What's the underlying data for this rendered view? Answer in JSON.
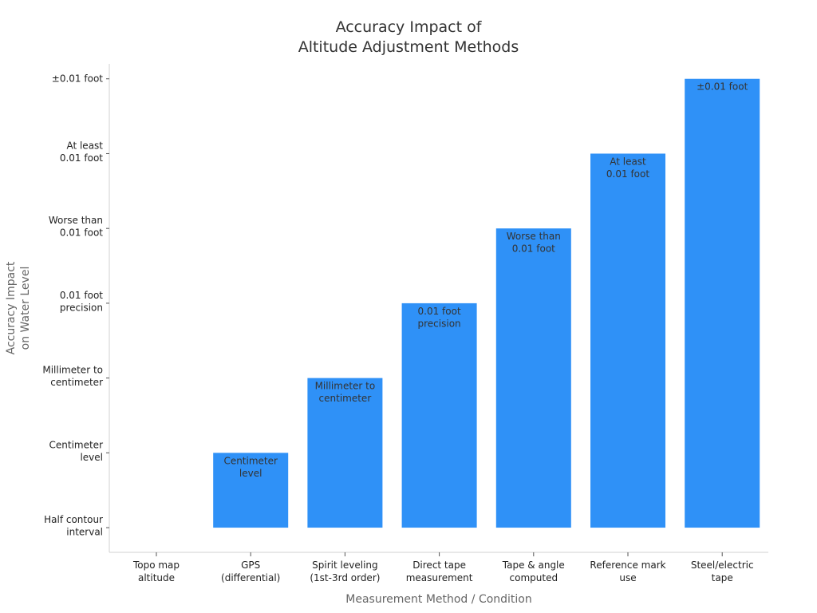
{
  "chart_data": {
    "type": "bar",
    "title": [
      "Accuracy Impact of",
      "Altitude Adjustment Methods"
    ],
    "xlabel": "Measurement Method / Condition",
    "ylabel": [
      "Accuracy Impact",
      "on Water Level"
    ],
    "categories": [
      [
        "Topo map",
        "altitude"
      ],
      [
        "GPS",
        "(differential)"
      ],
      [
        "Spirit leveling",
        "(1st-3rd order)"
      ],
      [
        "Direct tape",
        "measurement"
      ],
      [
        "Tape & angle",
        "computed"
      ],
      [
        "Reference mark",
        "use"
      ],
      [
        "Steel/electric",
        "tape"
      ]
    ],
    "values": [
      0,
      1,
      2,
      3,
      4,
      5,
      6
    ],
    "ylim": [
      -0.33,
      6.2
    ],
    "yticks": [
      {
        "value": 0,
        "label": [
          "Half contour",
          "interval"
        ]
      },
      {
        "value": 1,
        "label": [
          "Centimeter",
          "level"
        ]
      },
      {
        "value": 2,
        "label": [
          "Millimeter to",
          "centimeter"
        ]
      },
      {
        "value": 3,
        "label": [
          "0.01 foot",
          "precision"
        ]
      },
      {
        "value": 4,
        "label": [
          "Worse than",
          "0.01 foot"
        ]
      },
      {
        "value": 5,
        "label": [
          "At least",
          "0.01 foot"
        ]
      },
      {
        "value": 6,
        "label": [
          "±0.01 foot"
        ]
      }
    ],
    "bar_labels": [
      [],
      [
        "Centimeter",
        "level"
      ],
      [
        "Millimeter to",
        "centimeter"
      ],
      [
        "0.01 foot",
        "precision"
      ],
      [
        "Worse than",
        "0.01 foot"
      ],
      [
        "At least",
        "0.01 foot"
      ],
      [
        "±0.01 foot"
      ]
    ],
    "bar_color": "#2f91f7",
    "grid": false,
    "legend": "none"
  }
}
